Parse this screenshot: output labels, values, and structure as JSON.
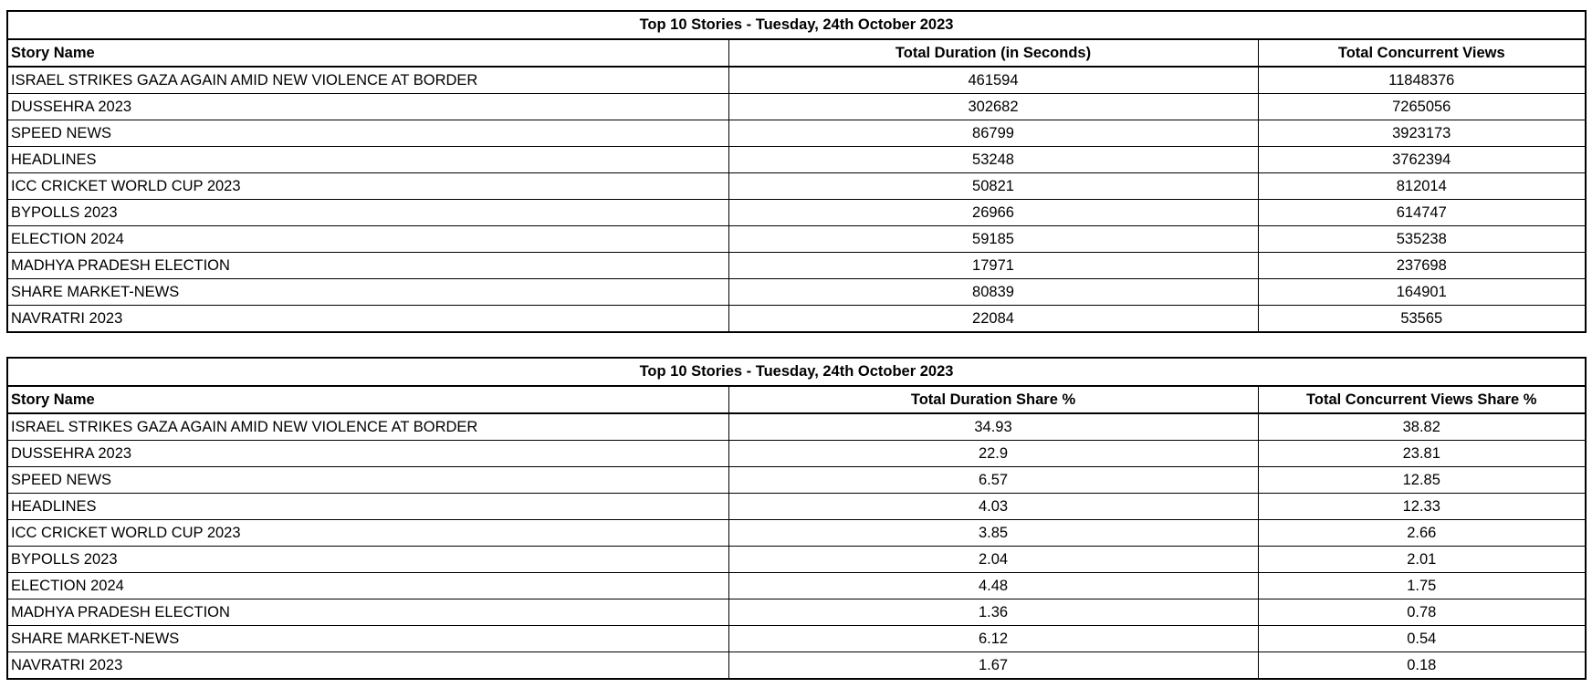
{
  "table1": {
    "title": "Top 10 Stories - Tuesday, 24th October 2023",
    "headers": [
      "Story Name",
      "Total Duration (in Seconds)",
      "Total Concurrent Views"
    ],
    "rows": [
      [
        "ISRAEL STRIKES GAZA AGAIN AMID NEW VIOLENCE AT BORDER",
        "461594",
        "11848376"
      ],
      [
        "DUSSEHRA 2023",
        "302682",
        "7265056"
      ],
      [
        "SPEED NEWS",
        "86799",
        "3923173"
      ],
      [
        "HEADLINES",
        "53248",
        "3762394"
      ],
      [
        "ICC CRICKET WORLD CUP 2023",
        "50821",
        "812014"
      ],
      [
        "BYPOLLS 2023",
        "26966",
        "614747"
      ],
      [
        "ELECTION 2024",
        "59185",
        "535238"
      ],
      [
        "MADHYA PRADESH ELECTION",
        "17971",
        "237698"
      ],
      [
        "SHARE MARKET-NEWS",
        "80839",
        "164901"
      ],
      [
        "NAVRATRI 2023",
        "22084",
        "53565"
      ]
    ]
  },
  "table2": {
    "title": "Top 10 Stories - Tuesday, 24th October 2023",
    "headers": [
      "Story Name",
      "Total Duration Share %",
      "Total Concurrent Views Share %"
    ],
    "rows": [
      [
        "ISRAEL STRIKES GAZA AGAIN AMID NEW VIOLENCE AT BORDER",
        "34.93",
        "38.82"
      ],
      [
        "DUSSEHRA 2023",
        "22.9",
        "23.81"
      ],
      [
        "SPEED NEWS",
        "6.57",
        "12.85"
      ],
      [
        "HEADLINES",
        "4.03",
        "12.33"
      ],
      [
        "ICC CRICKET WORLD CUP 2023",
        "3.85",
        "2.66"
      ],
      [
        "BYPOLLS 2023",
        "2.04",
        "2.01"
      ],
      [
        "ELECTION 2024",
        "4.48",
        "1.75"
      ],
      [
        "MADHYA PRADESH ELECTION",
        "1.36",
        "0.78"
      ],
      [
        "SHARE MARKET-NEWS",
        "6.12",
        "0.54"
      ],
      [
        "NAVRATRI 2023",
        "1.67",
        "0.18"
      ]
    ]
  }
}
